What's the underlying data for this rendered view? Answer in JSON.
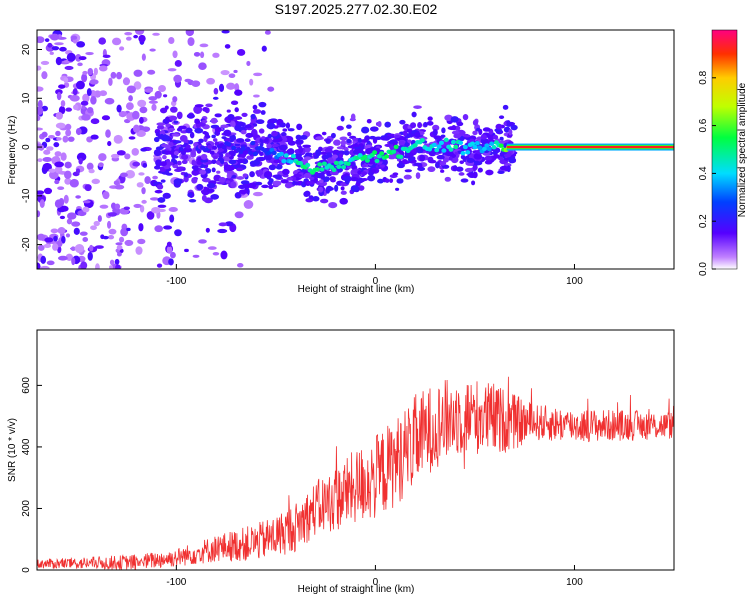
{
  "title": "S197.2025.277.02.30.E02",
  "colors": {
    "snr_line": "#f03030",
    "spectrogram_low": "#8a2be2",
    "ridge_high": "#ff2020"
  },
  "chart_data": [
    {
      "type": "heatmap",
      "name": "spectrogram",
      "xlabel": "Height of straight line (km)",
      "ylabel": "Frequency (Hz)",
      "xlim": [
        -170,
        150
      ],
      "ylim": [
        -25,
        24
      ],
      "xticks": [
        -100,
        0,
        100
      ],
      "yticks": [
        20,
        10,
        0,
        -10,
        -20
      ],
      "colorbar": {
        "label": "Normalized spectral amplitude",
        "range": [
          0,
          1
        ],
        "ticks": [
          0.0,
          0.2,
          0.4,
          0.6,
          0.8
        ],
        "colormap": "rainbow (purple to red)"
      },
      "ridge": {
        "description": "frequency of peak spectral amplitude vs height",
        "x": [
          -100,
          -80,
          -60,
          -50,
          -40,
          -30,
          -20,
          -10,
          0,
          10,
          20,
          30,
          40,
          50,
          60,
          70,
          80,
          100,
          120,
          150
        ],
        "y": [
          -0.5,
          0.0,
          -0.5,
          -1.5,
          -3.0,
          -4.5,
          -3.5,
          -2.5,
          -1.5,
          -1.0,
          0.5,
          0.0,
          0.5,
          -0.5,
          0.0,
          0.0,
          0.0,
          0.0,
          0.0,
          0.0
        ],
        "amplitude": [
          0.15,
          0.18,
          0.2,
          0.3,
          0.45,
          0.5,
          0.45,
          0.45,
          0.5,
          0.5,
          0.45,
          0.4,
          0.45,
          0.35,
          0.4,
          0.8,
          0.85,
          0.85,
          0.8,
          0.85
        ]
      }
    },
    {
      "type": "line",
      "name": "snr",
      "xlabel": "Height of straight line (km)",
      "ylabel": "SNR (10 * v/v)",
      "xlim": [
        -170,
        150
      ],
      "ylim": [
        0,
        780
      ],
      "xticks": [
        -100,
        0,
        100
      ],
      "yticks": [
        0,
        200,
        400,
        600
      ],
      "trend": {
        "x": [
          -170,
          -120,
          -100,
          -80,
          -60,
          -50,
          -40,
          -30,
          -20,
          -10,
          0,
          10,
          20,
          30,
          40,
          50,
          60,
          70,
          80,
          100,
          120,
          150
        ],
        "y": [
          20,
          25,
          40,
          70,
          90,
          110,
          140,
          200,
          230,
          270,
          300,
          350,
          420,
          470,
          500,
          500,
          490,
          480,
          480,
          470,
          470,
          470
        ]
      },
      "noise_amplitude": {
        "x": [
          -170,
          -100,
          -60,
          -30,
          0,
          20,
          40,
          60,
          80,
          150
        ],
        "y": [
          15,
          30,
          60,
          90,
          140,
          150,
          130,
          120,
          60,
          45
        ]
      }
    }
  ]
}
